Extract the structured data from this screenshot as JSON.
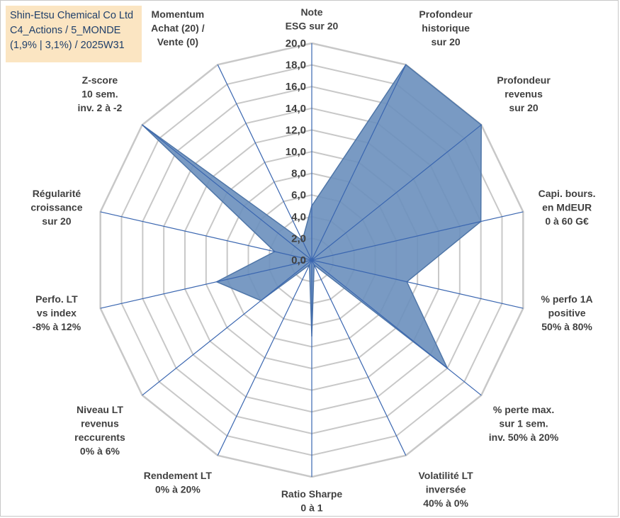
{
  "header": {
    "line1": "Shin-Etsu Chemical Co Ltd",
    "line2": "C4_Actions / 5_MONDE",
    "line3": "(1,9% | 3,1%) / 2025W31"
  },
  "chart_data": {
    "type": "radar",
    "rlim": [
      0,
      20
    ],
    "ticks": [
      "0,0",
      "2,0",
      "4,0",
      "6,0",
      "8,0",
      "10,0",
      "12,0",
      "14,0",
      "16,0",
      "18,0",
      "20,0"
    ],
    "grid": true,
    "axes": [
      {
        "label": [
          "Note",
          "ESG sur 20"
        ],
        "value": 5.0
      },
      {
        "label": [
          "Profondeur",
          "historique",
          "sur 20"
        ],
        "value": 20.0
      },
      {
        "label": [
          "Profondeur",
          "revenus",
          "sur 20"
        ],
        "value": 20.0
      },
      {
        "label": [
          "Capi. bours.",
          "en MdEUR",
          "0 à 60 G€"
        ],
        "value": 16.0
      },
      {
        "label": [
          "% perfo 1A",
          "positive",
          "50% à 80%"
        ],
        "value": 9.0
      },
      {
        "label": [
          "% perte max.",
          "sur 1 sem.",
          "inv. 50% à 20%"
        ],
        "value": 16.0
      },
      {
        "label": [
          "Volatilité LT",
          "inversée",
          "40% à 0%"
        ],
        "value": 0.5
      },
      {
        "label": [
          "Ratio Sharpe",
          "0 à 1"
        ],
        "value": 7.0
      },
      {
        "label": [
          "Rendement LT",
          "0% à 20%"
        ],
        "value": 0.5
      },
      {
        "label": [
          "Niveau LT",
          "revenus",
          "reccurents",
          "0% à 6%"
        ],
        "value": 6.0
      },
      {
        "label": [
          "Perfo. LT",
          "vs index",
          "-8% à 12%"
        ],
        "value": 9.0
      },
      {
        "label": [
          "Régularité",
          "croissance",
          "sur 20"
        ],
        "value": 3.5
      },
      {
        "label": [
          "Z-score",
          "10 sem.",
          "inv. 2 à -2"
        ],
        "value": 20.0
      },
      {
        "label": [
          "Momentum",
          "Achat (20) /",
          "Vente (0)"
        ],
        "value": 2.0
      }
    ],
    "series": [
      {
        "fill": "#6a8fbd",
        "stroke": "#4f76a8"
      }
    ],
    "grid_color": "#c8c8c8",
    "spoke_color": "#3a66b0"
  }
}
